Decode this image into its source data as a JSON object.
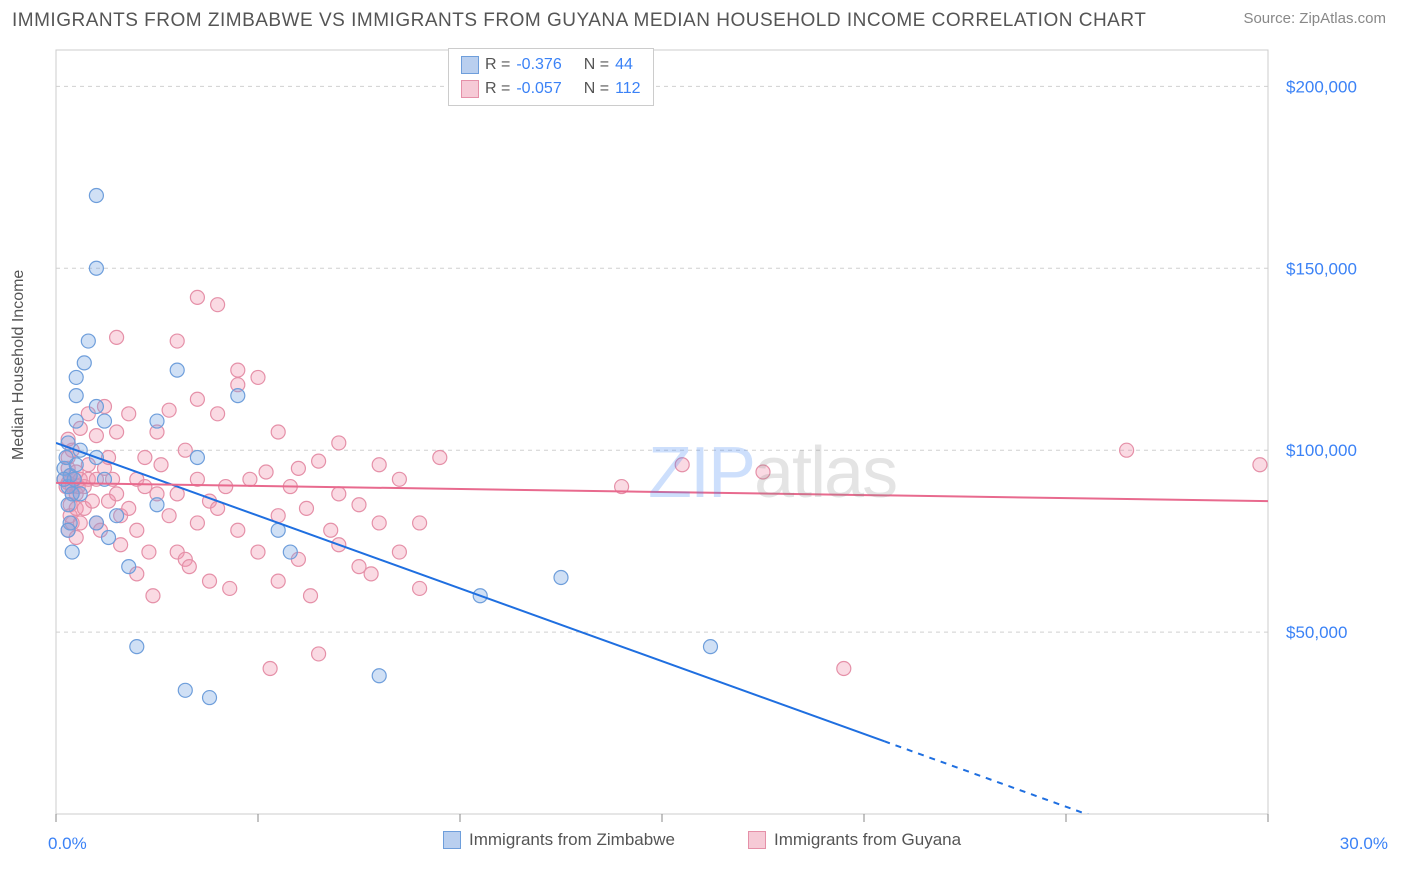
{
  "title": "IMMIGRANTS FROM ZIMBABWE VS IMMIGRANTS FROM GUYANA MEDIAN HOUSEHOLD INCOME CORRELATION CHART",
  "source": "Source: ZipAtlas.com",
  "ylabel": "Median Household Income",
  "watermark": {
    "part1": "ZIP",
    "part2": "atlas"
  },
  "plot": {
    "xlim": [
      0,
      30
    ],
    "ylim": [
      0,
      210000
    ],
    "xticks": [
      0,
      5,
      10,
      15,
      20,
      25,
      30
    ],
    "yticks": [
      50000,
      100000,
      150000,
      200000
    ],
    "xtick_labels_shown": {
      "0": "0.0%",
      "30": "30.0%"
    },
    "ytick_labels": [
      "$50,000",
      "$100,000",
      "$150,000",
      "$200,000"
    ],
    "grid_color": "#d0d0d0",
    "grid_dash": "4 4",
    "border_color": "#cccccc",
    "background": "#ffffff",
    "axis_label_color": "#3b82f6",
    "marker_radius": 7,
    "marker_stroke_width": 1.2,
    "line_width": 2
  },
  "series": [
    {
      "name": "Immigrants from Zimbabwe",
      "color_fill": "rgba(120,165,225,0.35)",
      "color_stroke": "#6e9edb",
      "color_line": "#1f6fe0",
      "swatch_fill": "#b9cfef",
      "swatch_border": "#6e9edb",
      "R": "-0.376",
      "N": "44",
      "trend": {
        "x1": 0,
        "y1": 102000,
        "x2": 20.5,
        "y2": 20000,
        "dash_from_x": 20.5,
        "dash_to_x": 30,
        "dash_to_y": -18000
      },
      "points": [
        [
          0.2,
          95000
        ],
        [
          0.3,
          90000
        ],
        [
          0.35,
          93000
        ],
        [
          0.4,
          88000
        ],
        [
          0.3,
          102000
        ],
        [
          0.5,
          108000
        ],
        [
          0.6,
          100000
        ],
        [
          0.4,
          72000
        ],
        [
          0.35,
          80000
        ],
        [
          0.3,
          85000
        ],
        [
          0.5,
          96000
        ],
        [
          0.45,
          92000
        ],
        [
          0.25,
          98000
        ],
        [
          0.2,
          92000
        ],
        [
          0.5,
          120000
        ],
        [
          1.0,
          170000
        ],
        [
          1.0,
          150000
        ],
        [
          0.8,
          130000
        ],
        [
          0.7,
          124000
        ],
        [
          0.5,
          115000
        ],
        [
          0.6,
          88000
        ],
        [
          1.0,
          112000
        ],
        [
          1.2,
          108000
        ],
        [
          1.0,
          98000
        ],
        [
          1.2,
          92000
        ],
        [
          1.0,
          80000
        ],
        [
          1.5,
          82000
        ],
        [
          1.3,
          76000
        ],
        [
          1.8,
          68000
        ],
        [
          2.0,
          46000
        ],
        [
          2.5,
          108000
        ],
        [
          2.5,
          85000
        ],
        [
          3.0,
          122000
        ],
        [
          3.5,
          98000
        ],
        [
          3.2,
          34000
        ],
        [
          3.8,
          32000
        ],
        [
          4.5,
          115000
        ],
        [
          5.5,
          78000
        ],
        [
          5.8,
          72000
        ],
        [
          8.0,
          38000
        ],
        [
          10.5,
          60000
        ],
        [
          12.5,
          65000
        ],
        [
          16.2,
          46000
        ],
        [
          0.3,
          78000
        ]
      ]
    },
    {
      "name": "Immigrants from Guyana",
      "color_fill": "rgba(240,150,175,0.35)",
      "color_stroke": "#e590a8",
      "color_line": "#e86a8e",
      "swatch_fill": "#f6cad6",
      "swatch_border": "#e590a8",
      "R": "-0.057",
      "N": "112",
      "trend": {
        "x1": 0,
        "y1": 91000,
        "x2": 30,
        "y2": 86000
      },
      "points": [
        [
          0.2,
          92000
        ],
        [
          0.25,
          90000
        ],
        [
          0.3,
          91000
        ],
        [
          0.3,
          95000
        ],
        [
          0.35,
          93000
        ],
        [
          0.4,
          90000
        ],
        [
          0.4,
          88000
        ],
        [
          0.45,
          92000
        ],
        [
          0.3,
          98000
        ],
        [
          0.35,
          85000
        ],
        [
          0.5,
          94000
        ],
        [
          0.5,
          88000
        ],
        [
          0.55,
          90000
        ],
        [
          0.6,
          92000
        ],
        [
          0.3,
          78000
        ],
        [
          0.35,
          82000
        ],
        [
          0.4,
          80000
        ],
        [
          0.5,
          84000
        ],
        [
          0.5,
          76000
        ],
        [
          0.6,
          80000
        ],
        [
          0.7,
          90000
        ],
        [
          0.7,
          84000
        ],
        [
          0.8,
          92000
        ],
        [
          0.8,
          96000
        ],
        [
          0.3,
          103000
        ],
        [
          0.4,
          100000
        ],
        [
          0.6,
          106000
        ],
        [
          0.8,
          110000
        ],
        [
          0.9,
          86000
        ],
        [
          1.0,
          92000
        ],
        [
          1.0,
          104000
        ],
        [
          1.0,
          80000
        ],
        [
          1.1,
          78000
        ],
        [
          1.2,
          112000
        ],
        [
          1.2,
          95000
        ],
        [
          1.3,
          86000
        ],
        [
          1.3,
          98000
        ],
        [
          1.4,
          92000
        ],
        [
          1.5,
          105000
        ],
        [
          1.5,
          88000
        ],
        [
          1.5,
          131000
        ],
        [
          1.6,
          82000
        ],
        [
          1.6,
          74000
        ],
        [
          1.8,
          84000
        ],
        [
          1.8,
          110000
        ],
        [
          2.0,
          92000
        ],
        [
          2.0,
          78000
        ],
        [
          2.0,
          66000
        ],
        [
          2.2,
          90000
        ],
        [
          2.2,
          98000
        ],
        [
          2.3,
          72000
        ],
        [
          2.4,
          60000
        ],
        [
          2.5,
          105000
        ],
        [
          2.5,
          88000
        ],
        [
          2.6,
          96000
        ],
        [
          2.8,
          111000
        ],
        [
          2.8,
          82000
        ],
        [
          3.0,
          88000
        ],
        [
          3.0,
          130000
        ],
        [
          3.0,
          72000
        ],
        [
          3.2,
          100000
        ],
        [
          3.2,
          70000
        ],
        [
          3.3,
          68000
        ],
        [
          3.5,
          92000
        ],
        [
          3.5,
          80000
        ],
        [
          3.5,
          114000
        ],
        [
          3.8,
          86000
        ],
        [
          3.8,
          64000
        ],
        [
          4.0,
          110000
        ],
        [
          4.0,
          84000
        ],
        [
          4.0,
          140000
        ],
        [
          4.2,
          90000
        ],
        [
          4.3,
          62000
        ],
        [
          4.5,
          122000
        ],
        [
          4.5,
          78000
        ],
        [
          4.5,
          118000
        ],
        [
          4.8,
          92000
        ],
        [
          5.0,
          72000
        ],
        [
          5.0,
          120000
        ],
        [
          5.2,
          94000
        ],
        [
          5.3,
          40000
        ],
        [
          5.5,
          105000
        ],
        [
          5.5,
          64000
        ],
        [
          5.5,
          82000
        ],
        [
          5.8,
          90000
        ],
        [
          6.0,
          70000
        ],
        [
          6.0,
          95000
        ],
        [
          6.2,
          84000
        ],
        [
          6.3,
          60000
        ],
        [
          6.5,
          97000
        ],
        [
          6.5,
          44000
        ],
        [
          6.8,
          78000
        ],
        [
          7.0,
          88000
        ],
        [
          7.0,
          74000
        ],
        [
          7.0,
          102000
        ],
        [
          7.5,
          68000
        ],
        [
          7.5,
          85000
        ],
        [
          7.8,
          66000
        ],
        [
          8.0,
          80000
        ],
        [
          8.0,
          96000
        ],
        [
          8.5,
          72000
        ],
        [
          8.5,
          92000
        ],
        [
          9.0,
          62000
        ],
        [
          9.0,
          80000
        ],
        [
          9.5,
          98000
        ],
        [
          14.0,
          90000
        ],
        [
          15.5,
          96000
        ],
        [
          17.5,
          94000
        ],
        [
          19.5,
          40000
        ],
        [
          26.5,
          100000
        ],
        [
          29.8,
          96000
        ],
        [
          3.5,
          142000
        ]
      ]
    }
  ],
  "bottom_legend": [
    {
      "label": "Immigrants from Zimbabwe",
      "swatch_fill": "#b9cfef",
      "swatch_border": "#6e9edb"
    },
    {
      "label": "Immigrants from Guyana",
      "swatch_fill": "#f6cad6",
      "swatch_border": "#e590a8"
    }
  ]
}
